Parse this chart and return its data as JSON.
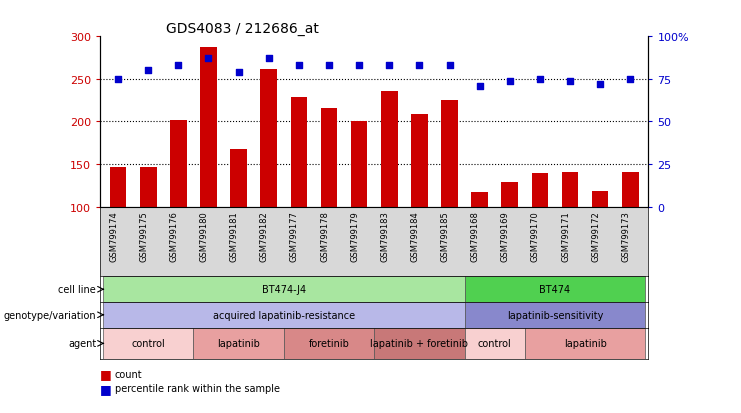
{
  "title": "GDS4083 / 212686_at",
  "samples": [
    "GSM799174",
    "GSM799175",
    "GSM799176",
    "GSM799180",
    "GSM799181",
    "GSM799182",
    "GSM799177",
    "GSM799178",
    "GSM799179",
    "GSM799183",
    "GSM799184",
    "GSM799185",
    "GSM799168",
    "GSM799169",
    "GSM799170",
    "GSM799171",
    "GSM799172",
    "GSM799173"
  ],
  "bar_values": [
    147,
    147,
    202,
    287,
    168,
    262,
    229,
    216,
    200,
    236,
    209,
    225,
    117,
    129,
    139,
    140,
    118,
    140
  ],
  "dot_values": [
    75,
    80,
    83,
    87,
    79,
    87,
    83,
    83,
    83,
    83,
    83,
    83,
    71,
    74,
    75,
    74,
    72,
    75
  ],
  "bar_color": "#cc0000",
  "dot_color": "#0000cc",
  "ymin": 100,
  "ymax": 300,
  "yticks": [
    100,
    150,
    200,
    250,
    300
  ],
  "ytick_labels_left": [
    "100",
    "150",
    "200",
    "250",
    "300"
  ],
  "ytick_labels_right": [
    "0",
    "25",
    "50",
    "75",
    "100%"
  ],
  "grid_values": [
    150,
    200,
    250
  ],
  "cell_line_groups": [
    {
      "label": "BT474-J4",
      "start": 0,
      "end": 11,
      "color": "#a8e6a0"
    },
    {
      "label": "BT474",
      "start": 12,
      "end": 17,
      "color": "#50d050"
    }
  ],
  "genotype_groups": [
    {
      "label": "acquired lapatinib-resistance",
      "start": 0,
      "end": 11,
      "color": "#b8b8e8"
    },
    {
      "label": "lapatinib-sensitivity",
      "start": 12,
      "end": 17,
      "color": "#8888cc"
    }
  ],
  "agent_groups": [
    {
      "label": "control",
      "start": 0,
      "end": 2,
      "color": "#f8d0d0"
    },
    {
      "label": "lapatinib",
      "start": 3,
      "end": 5,
      "color": "#e8a0a0"
    },
    {
      "label": "foretinib",
      "start": 6,
      "end": 8,
      "color": "#d88888"
    },
    {
      "label": "lapatinib + foretinib",
      "start": 9,
      "end": 11,
      "color": "#c87878"
    },
    {
      "label": "control",
      "start": 12,
      "end": 13,
      "color": "#f8d0d0"
    },
    {
      "label": "lapatinib",
      "start": 14,
      "end": 17,
      "color": "#e8a0a0"
    }
  ],
  "legend_items": [
    {
      "label": "count",
      "color": "#cc0000"
    },
    {
      "label": "percentile rank within the sample",
      "color": "#0000cc"
    }
  ],
  "row_labels": [
    "cell line",
    "genotype/variation",
    "agent"
  ],
  "background_color": "#ffffff",
  "axis_label_color_left": "#cc0000",
  "axis_label_color_right": "#0000cc",
  "tick_area_color": "#d8d8d8"
}
